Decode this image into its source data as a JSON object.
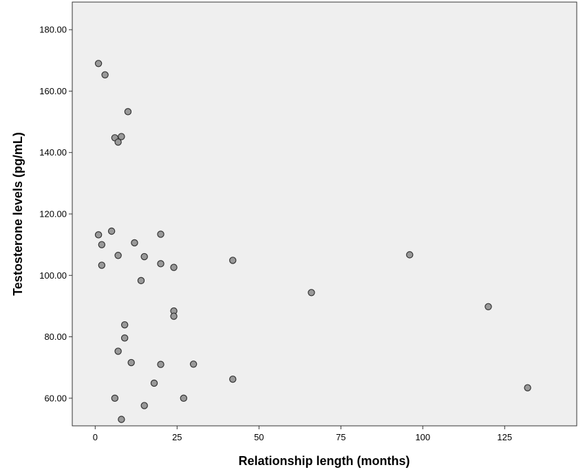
{
  "chart_data": {
    "type": "scatter",
    "title": "",
    "xlabel": "Relationship length (months)",
    "ylabel": "Testosterone levels (pg/mL)",
    "xlim": [
      -7,
      147
    ],
    "ylim": [
      51,
      189
    ],
    "x_ticks": [
      0,
      25,
      50,
      75,
      100,
      125
    ],
    "x_tick_labels": [
      "0",
      "25",
      "50",
      "75",
      "100",
      "125"
    ],
    "y_ticks": [
      60,
      80,
      100,
      120,
      140,
      160,
      180
    ],
    "y_tick_labels": [
      "60.00",
      "80.00",
      "100.00",
      "120.00",
      "140.00",
      "160.00",
      "180.00"
    ],
    "grid": false,
    "plot_background": "#efefef",
    "marker_fill": "#999999",
    "marker_edge": "#333333",
    "points": [
      {
        "x": 1,
        "y": 169.0
      },
      {
        "x": 3,
        "y": 165.3
      },
      {
        "x": 10,
        "y": 153.3
      },
      {
        "x": 6,
        "y": 144.8
      },
      {
        "x": 8,
        "y": 145.2
      },
      {
        "x": 7,
        "y": 143.4
      },
      {
        "x": 1,
        "y": 113.2
      },
      {
        "x": 5,
        "y": 114.4
      },
      {
        "x": 2,
        "y": 110.0
      },
      {
        "x": 12,
        "y": 110.6
      },
      {
        "x": 20,
        "y": 113.4
      },
      {
        "x": 7,
        "y": 106.5
      },
      {
        "x": 15,
        "y": 106.1
      },
      {
        "x": 2,
        "y": 103.3
      },
      {
        "x": 20,
        "y": 103.8
      },
      {
        "x": 24,
        "y": 102.6
      },
      {
        "x": 42,
        "y": 104.9
      },
      {
        "x": 96,
        "y": 106.7
      },
      {
        "x": 14,
        "y": 98.3
      },
      {
        "x": 66,
        "y": 94.4
      },
      {
        "x": 120,
        "y": 89.8
      },
      {
        "x": 24,
        "y": 88.4
      },
      {
        "x": 24,
        "y": 86.7
      },
      {
        "x": 9,
        "y": 83.9
      },
      {
        "x": 9,
        "y": 79.6
      },
      {
        "x": 7,
        "y": 75.3
      },
      {
        "x": 11,
        "y": 71.6
      },
      {
        "x": 20,
        "y": 71.0
      },
      {
        "x": 30,
        "y": 71.1
      },
      {
        "x": 42,
        "y": 66.2
      },
      {
        "x": 18,
        "y": 64.9
      },
      {
        "x": 132,
        "y": 63.4
      },
      {
        "x": 6,
        "y": 60.0
      },
      {
        "x": 27,
        "y": 60.0
      },
      {
        "x": 15,
        "y": 57.6
      },
      {
        "x": 8,
        "y": 53.1
      }
    ]
  }
}
